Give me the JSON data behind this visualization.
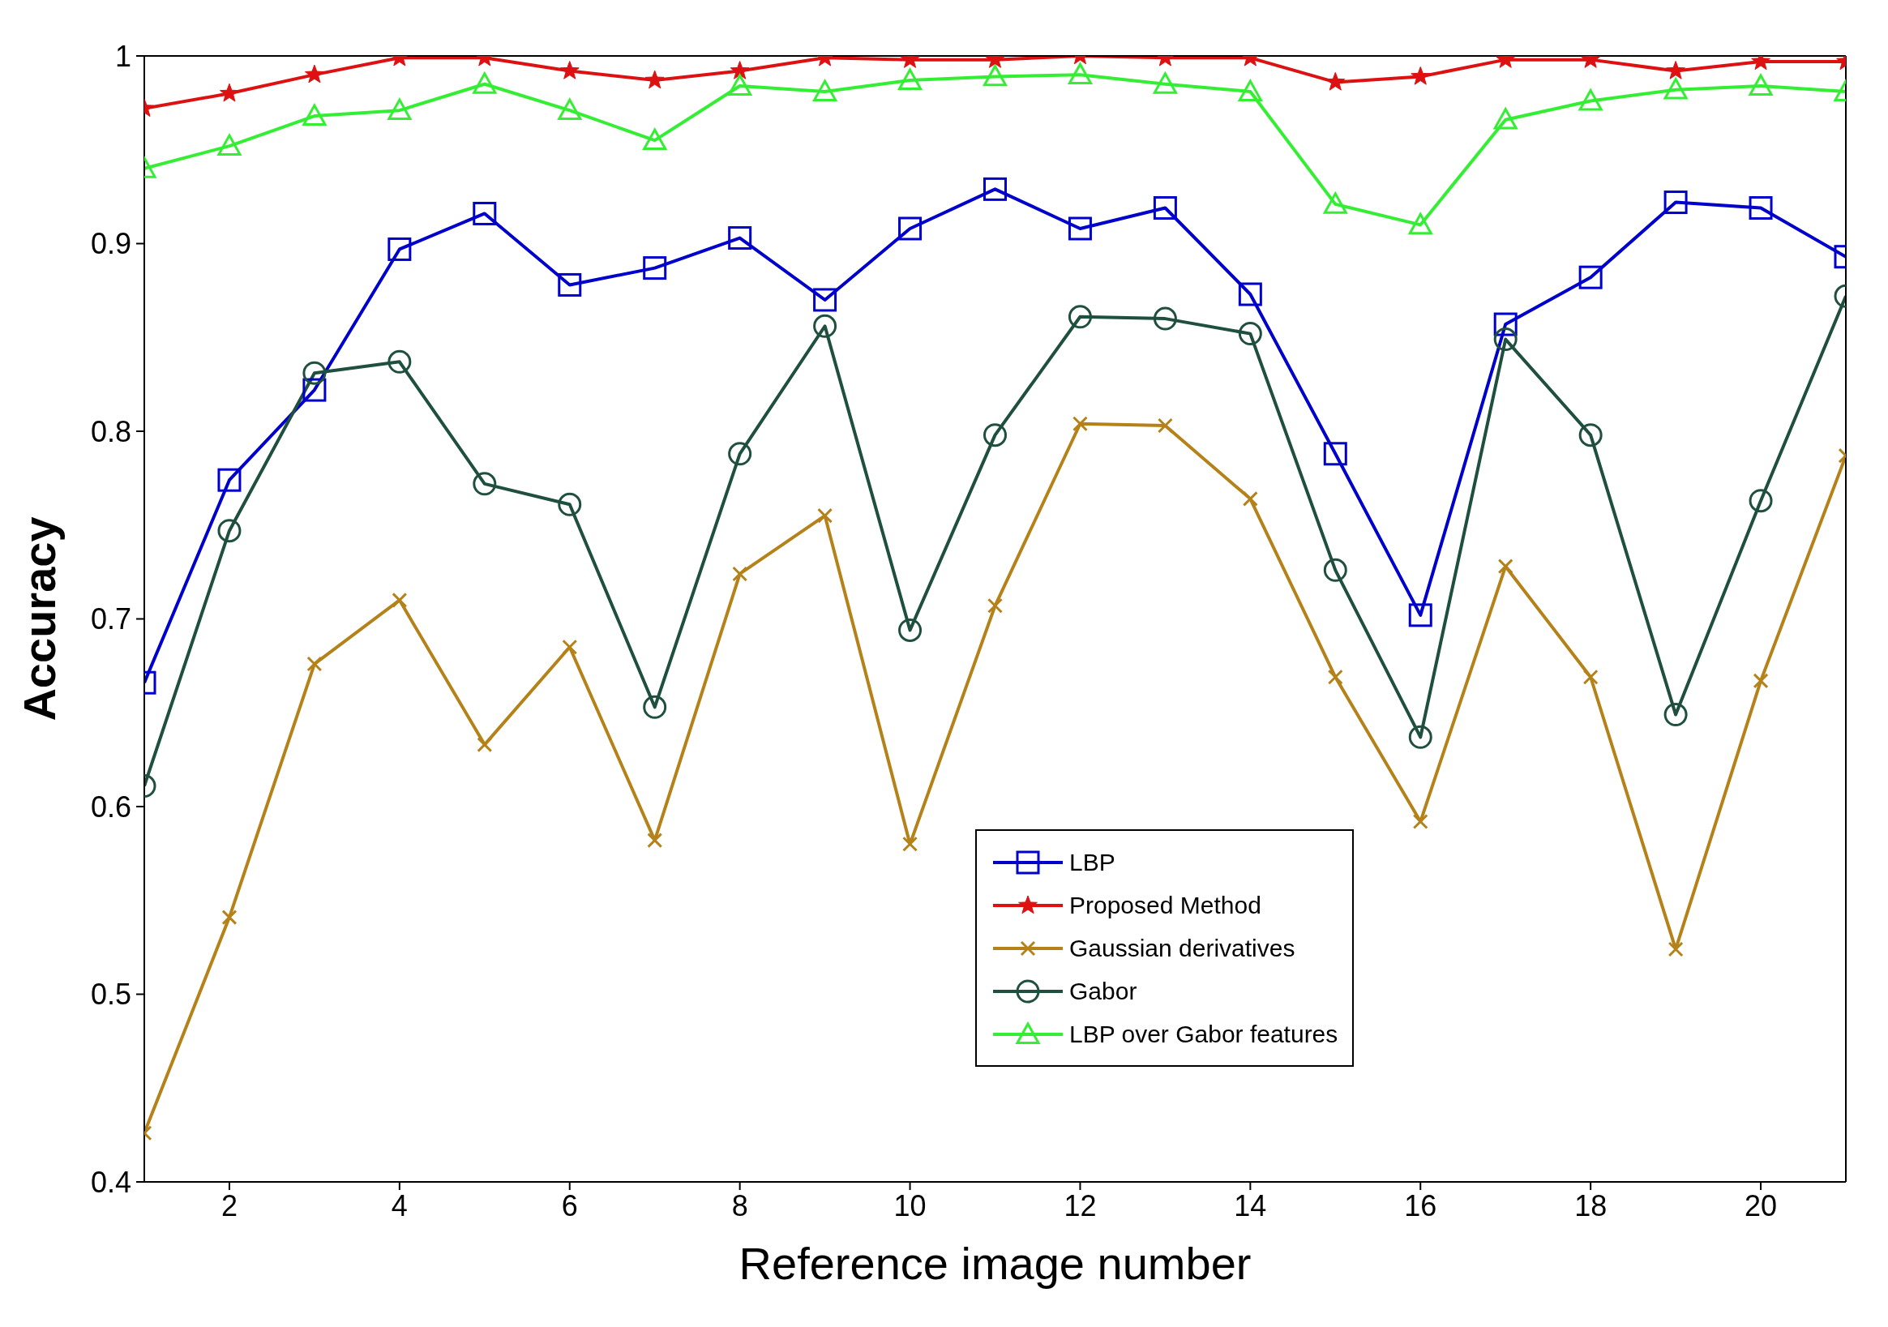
{
  "chart_data": {
    "type": "line",
    "xlabel": "Reference image number",
    "ylabel": "Accuracy",
    "x": [
      1,
      2,
      3,
      4,
      5,
      6,
      7,
      8,
      9,
      10,
      11,
      12,
      13,
      14,
      15,
      16,
      17,
      18,
      19,
      20,
      21
    ],
    "xlim": [
      1,
      21
    ],
    "xticks": [
      2,
      4,
      6,
      8,
      10,
      12,
      14,
      16,
      18,
      20
    ],
    "ylim": [
      0.4,
      1
    ],
    "yticks": [
      0.4,
      0.5,
      0.6,
      0.7,
      0.8,
      0.9,
      1
    ],
    "grid": false,
    "legend": "bottom",
    "line_style": "solid",
    "series": [
      {
        "name": "LBP",
        "color": "#0000cc",
        "marker": "square",
        "values": [
          0.666,
          0.774,
          0.822,
          0.897,
          0.916,
          0.878,
          0.887,
          0.903,
          0.87,
          0.908,
          0.929,
          0.908,
          0.919,
          0.873,
          0.788,
          0.702,
          0.857,
          0.882,
          0.922,
          0.919,
          0.893
        ]
      },
      {
        "name": "Proposed Method",
        "color": "#dd1111",
        "marker": "star",
        "values": [
          0.972,
          0.98,
          0.99,
          0.999,
          0.999,
          0.992,
          0.987,
          0.992,
          0.999,
          0.998,
          0.998,
          1.0,
          0.999,
          0.999,
          0.986,
          0.989,
          0.998,
          0.998,
          0.992,
          0.997,
          0.997
        ]
      },
      {
        "name": "Gaussian derivatives",
        "color": "#b5821a",
        "marker": "cross",
        "values": [
          0.426,
          0.541,
          0.676,
          0.71,
          0.633,
          0.685,
          0.582,
          0.724,
          0.755,
          0.58,
          0.707,
          0.804,
          0.803,
          0.764,
          0.669,
          0.592,
          0.728,
          0.669,
          0.524,
          0.667,
          0.787
        ]
      },
      {
        "name": "Gabor",
        "color": "#1f4f3f",
        "marker": "circle",
        "values": [
          0.611,
          0.747,
          0.831,
          0.837,
          0.772,
          0.761,
          0.653,
          0.788,
          0.856,
          0.694,
          0.798,
          0.861,
          0.86,
          0.852,
          0.726,
          0.637,
          0.849,
          0.798,
          0.649,
          0.763,
          0.872
        ]
      },
      {
        "name": "LBP over Gabor features",
        "color": "#33ee33",
        "marker": "triangle",
        "values": [
          0.94,
          0.952,
          0.968,
          0.971,
          0.985,
          0.971,
          0.955,
          0.984,
          0.981,
          0.987,
          0.989,
          0.99,
          0.985,
          0.981,
          0.921,
          0.91,
          0.966,
          0.976,
          0.982,
          0.984,
          0.981
        ]
      }
    ]
  }
}
